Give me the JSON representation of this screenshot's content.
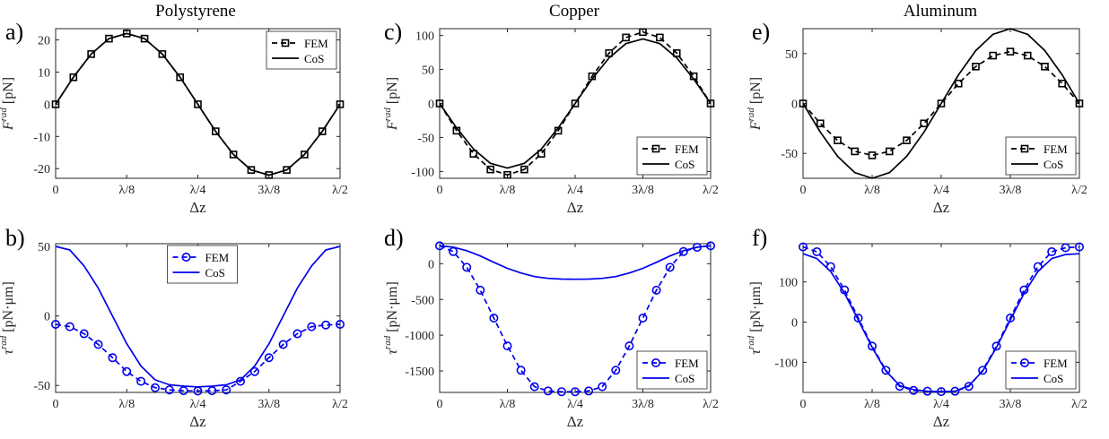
{
  "chart_data": [
    {
      "panel": "a)",
      "title": "Polystyrene",
      "type": "line",
      "xlabel": "Δz",
      "ylabel": "F^rad [pN]",
      "xticks": [
        "0",
        "λ/8",
        "λ/4",
        "3λ/8",
        "λ/2"
      ],
      "xlim": [
        0,
        0.5
      ],
      "ylim": [
        -23,
        23.5
      ],
      "yticks": [
        -20,
        -10,
        0,
        10,
        20
      ],
      "legend": "top-right",
      "series": [
        {
          "name": "FEM",
          "style": "dashed-square",
          "color": "#000000",
          "x": [
            0,
            0.03125,
            0.0625,
            0.09375,
            0.125,
            0.15625,
            0.1875,
            0.21875,
            0.25,
            0.28125,
            0.3125,
            0.34375,
            0.375,
            0.40625,
            0.4375,
            0.46875,
            0.5
          ],
          "y": [
            0,
            8.4,
            15.6,
            20.4,
            22.0,
            20.4,
            15.6,
            8.4,
            0,
            -8.4,
            -15.6,
            -20.4,
            -22.0,
            -20.4,
            -15.6,
            -8.4,
            0
          ]
        },
        {
          "name": "CoS",
          "style": "solid",
          "color": "#000000",
          "x": [
            0,
            0.03125,
            0.0625,
            0.09375,
            0.125,
            0.15625,
            0.1875,
            0.21875,
            0.25,
            0.28125,
            0.3125,
            0.34375,
            0.375,
            0.40625,
            0.4375,
            0.46875,
            0.5
          ],
          "y": [
            0,
            8.4,
            15.6,
            20.4,
            22.0,
            20.4,
            15.6,
            8.4,
            0,
            -8.4,
            -15.6,
            -20.4,
            -22.0,
            -20.4,
            -15.6,
            -8.4,
            0
          ]
        }
      ]
    },
    {
      "panel": "c)",
      "title": "Copper",
      "type": "line",
      "xlabel": "Δz",
      "ylabel": "F^rad [pN]",
      "xticks": [
        "0",
        "λ/8",
        "λ/4",
        "3λ/8",
        "λ/2"
      ],
      "xlim": [
        0,
        0.5
      ],
      "ylim": [
        -110,
        110
      ],
      "yticks": [
        -100,
        -50,
        0,
        50,
        100
      ],
      "legend": "bottom-right",
      "series": [
        {
          "name": "FEM",
          "style": "dashed-square",
          "color": "#000000",
          "x": [
            0,
            0.03125,
            0.0625,
            0.09375,
            0.125,
            0.15625,
            0.1875,
            0.21875,
            0.25,
            0.28125,
            0.3125,
            0.34375,
            0.375,
            0.40625,
            0.4375,
            0.46875,
            0.5
          ],
          "y": [
            0,
            -40,
            -74,
            -97,
            -105,
            -97,
            -74,
            -40,
            0,
            40,
            74,
            97,
            105,
            97,
            74,
            40,
            0
          ]
        },
        {
          "name": "CoS",
          "style": "solid",
          "color": "#000000",
          "x": [
            0,
            0.03125,
            0.0625,
            0.09375,
            0.125,
            0.15625,
            0.1875,
            0.21875,
            0.25,
            0.28125,
            0.3125,
            0.34375,
            0.375,
            0.40625,
            0.4375,
            0.46875,
            0.5
          ],
          "y": [
            0,
            -36,
            -67,
            -88,
            -95,
            -88,
            -67,
            -36,
            0,
            36,
            67,
            88,
            95,
            88,
            67,
            36,
            0
          ]
        }
      ]
    },
    {
      "panel": "e)",
      "title": "Aluminum",
      "type": "line",
      "xlabel": "Δz",
      "ylabel": "F^rad [pN]",
      "xticks": [
        "0",
        "λ/8",
        "λ/4",
        "3λ/8",
        "λ/2"
      ],
      "xlim": [
        0,
        0.5
      ],
      "ylim": [
        -75,
        75
      ],
      "yticks": [
        -50,
        0,
        50
      ],
      "legend": "bottom-right",
      "series": [
        {
          "name": "FEM",
          "style": "dashed-square",
          "color": "#000000",
          "x": [
            0,
            0.03125,
            0.0625,
            0.09375,
            0.125,
            0.15625,
            0.1875,
            0.21875,
            0.25,
            0.28125,
            0.3125,
            0.34375,
            0.375,
            0.40625,
            0.4375,
            0.46875,
            0.5
          ],
          "y": [
            0,
            -20,
            -37,
            -48,
            -52,
            -48,
            -37,
            -20,
            0,
            20,
            37,
            48,
            52,
            48,
            37,
            20,
            0
          ]
        },
        {
          "name": "CoS",
          "style": "solid",
          "color": "#000000",
          "x": [
            0,
            0.03125,
            0.0625,
            0.09375,
            0.125,
            0.15625,
            0.1875,
            0.21875,
            0.25,
            0.28125,
            0.3125,
            0.34375,
            0.375,
            0.40625,
            0.4375,
            0.46875,
            0.5
          ],
          "y": [
            0,
            -28.7,
            -53,
            -69.3,
            -75,
            -69.3,
            -53,
            -28.7,
            0,
            28.7,
            53,
            69.3,
            75,
            69.3,
            53,
            28.7,
            0
          ]
        }
      ]
    },
    {
      "panel": "b)",
      "title": "",
      "type": "line",
      "xlabel": "Δz",
      "ylabel": "τ^rad [pN·μm]",
      "xticks": [
        "0",
        "λ/8",
        "λ/4",
        "3λ/8",
        "λ/2"
      ],
      "xlim": [
        0,
        0.5
      ],
      "ylim": [
        -55,
        52
      ],
      "yticks": [
        -50,
        0,
        50
      ],
      "legend": "top-center",
      "series": [
        {
          "name": "FEM",
          "style": "dashed-circle",
          "color": "#0000ee",
          "x": [
            0,
            0.025,
            0.05,
            0.075,
            0.1,
            0.125,
            0.15,
            0.175,
            0.2,
            0.225,
            0.25,
            0.275,
            0.3,
            0.325,
            0.35,
            0.375,
            0.4,
            0.425,
            0.45,
            0.475,
            0.5
          ],
          "y": [
            -6,
            -7.7,
            -12.8,
            -20.5,
            -30,
            -40,
            -47,
            -51.6,
            -53.2,
            -53.8,
            -54,
            -53.8,
            -53.2,
            -47,
            -40,
            -30,
            -20.5,
            -12.8,
            -7.7,
            -6.5,
            -6
          ]
        },
        {
          "name": "CoS",
          "style": "solid",
          "color": "#0000ee",
          "x": [
            0,
            0.025,
            0.05,
            0.075,
            0.1,
            0.125,
            0.15,
            0.175,
            0.2,
            0.225,
            0.25,
            0.275,
            0.3,
            0.325,
            0.35,
            0.375,
            0.4,
            0.425,
            0.45,
            0.475,
            0.5
          ],
          "y": [
            50,
            47.5,
            36,
            20,
            0,
            -20,
            -36,
            -46,
            -49.5,
            -50.5,
            -51,
            -50.5,
            -49.5,
            -46,
            -36,
            -20,
            0,
            20,
            36,
            47.5,
            50
          ]
        }
      ]
    },
    {
      "panel": "d)",
      "title": "",
      "type": "line",
      "xlabel": "Δz",
      "ylabel": "τ^rad [pN·μm]",
      "xticks": [
        "0",
        "λ/8",
        "λ/4",
        "3λ/8",
        "λ/2"
      ],
      "xlim": [
        0,
        0.5
      ],
      "ylim": [
        -1800,
        280
      ],
      "yticks": [
        -1500,
        -1000,
        -500,
        0
      ],
      "legend": "bottom-right",
      "series": [
        {
          "name": "FEM",
          "style": "dashed-circle",
          "color": "#0000ee",
          "x": [
            0,
            0.025,
            0.05,
            0.075,
            0.1,
            0.125,
            0.15,
            0.175,
            0.2,
            0.225,
            0.25,
            0.275,
            0.3,
            0.325,
            0.35,
            0.375,
            0.4,
            0.425,
            0.45,
            0.475,
            0.5
          ],
          "y": [
            250,
            170,
            -50,
            -370,
            -760,
            -1150,
            -1490,
            -1720,
            -1780,
            -1790,
            -1790,
            -1780,
            -1720,
            -1490,
            -1150,
            -760,
            -370,
            -50,
            170,
            230,
            250
          ]
        },
        {
          "name": "CoS",
          "style": "solid",
          "color": "#0000ee",
          "x": [
            0,
            0.025,
            0.05,
            0.075,
            0.1,
            0.125,
            0.15,
            0.175,
            0.2,
            0.225,
            0.25,
            0.275,
            0.3,
            0.325,
            0.35,
            0.375,
            0.4,
            0.425,
            0.45,
            0.475,
            0.5
          ],
          "y": [
            250,
            232,
            182,
            108,
            20,
            -65,
            -130,
            -180,
            -205,
            -215,
            -218,
            -215,
            -205,
            -180,
            -130,
            -65,
            20,
            108,
            182,
            232,
            250
          ]
        }
      ]
    },
    {
      "panel": "f)",
      "title": "",
      "type": "line",
      "xlabel": "Δz",
      "ylabel": "τ^rad [pN·μm]",
      "xticks": [
        "0",
        "λ/8",
        "λ/4",
        "3λ/8",
        "λ/2"
      ],
      "xlim": [
        0,
        0.5
      ],
      "ylim": [
        -175,
        195
      ],
      "yticks": [
        -100,
        0,
        100
      ],
      "legend": "bottom-right",
      "series": [
        {
          "name": "FEM",
          "style": "dashed-circle",
          "color": "#0000ee",
          "x": [
            0,
            0.025,
            0.05,
            0.075,
            0.1,
            0.125,
            0.15,
            0.175,
            0.2,
            0.225,
            0.25,
            0.275,
            0.3,
            0.325,
            0.35,
            0.375,
            0.4,
            0.425,
            0.45,
            0.475,
            0.5
          ],
          "y": [
            187,
            175,
            138,
            80,
            10,
            -60,
            -120,
            -160,
            -170,
            -172,
            -173,
            -172,
            -160,
            -120,
            -60,
            10,
            80,
            138,
            175,
            185,
            187
          ]
        },
        {
          "name": "CoS",
          "style": "solid",
          "color": "#0000ee",
          "x": [
            0,
            0.025,
            0.05,
            0.075,
            0.1,
            0.125,
            0.15,
            0.175,
            0.2,
            0.225,
            0.25,
            0.275,
            0.3,
            0.325,
            0.35,
            0.375,
            0.4,
            0.425,
            0.45,
            0.475,
            0.5
          ],
          "y": [
            170,
            158,
            126,
            72,
            5,
            -63,
            -122,
            -158,
            -168,
            -172,
            -173,
            -172,
            -158,
            -122,
            -63,
            5,
            72,
            126,
            158,
            168,
            170
          ]
        }
      ]
    }
  ]
}
